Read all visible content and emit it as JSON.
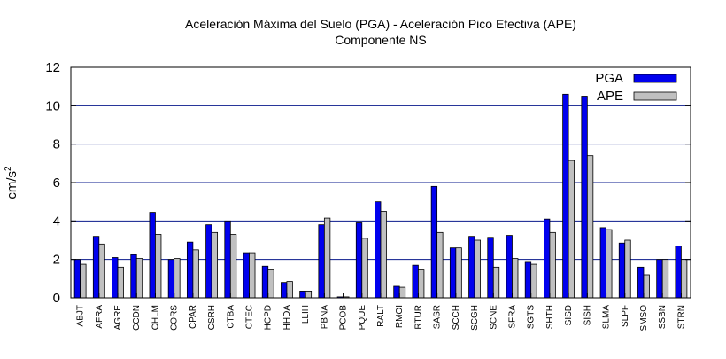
{
  "chart_data": {
    "type": "bar",
    "title_line1": "Aceleración Máxima del Suelo (PGA) -   Aceleración Pico Efectiva (APE)",
    "title_line2": "Componente NS",
    "ylabel": "cm/s",
    "ylabel_sup": "2",
    "xlabel": "",
    "ylim": [
      0,
      12
    ],
    "yticks": [
      0,
      2,
      4,
      6,
      8,
      10,
      12
    ],
    "grid": "horizontal",
    "legend_position": "top-right",
    "categories": [
      "ABJT",
      "AFRA",
      "AGRE",
      "CCDN",
      "CHLM",
      "CORS",
      "CPAR",
      "CSRH",
      "CTBA",
      "CTEC",
      "HCPD",
      "HHDA",
      "LLIH",
      "PBNA",
      "PCOB",
      "PQUE",
      "RALT",
      "RMOI",
      "RTUR",
      "SASR",
      "SCCH",
      "SCGH",
      "SCNE",
      "SFRA",
      "SGTS",
      "SHTH",
      "SISD",
      "SISH",
      "SLMA",
      "SLPF",
      "SMSO",
      "SSBN",
      "STRN"
    ],
    "series": [
      {
        "name": "PGA",
        "color": "#0000ee",
        "values": [
          2.0,
          3.2,
          2.1,
          2.25,
          4.45,
          2.0,
          2.9,
          3.8,
          4.0,
          2.35,
          1.65,
          0.8,
          0.35,
          3.8,
          0.05,
          3.9,
          5.0,
          0.6,
          1.7,
          5.8,
          2.6,
          3.2,
          3.15,
          3.25,
          1.85,
          4.1,
          10.6,
          10.5,
          3.65,
          2.85,
          1.6,
          2.0,
          2.7
        ]
      },
      {
        "name": "APE",
        "color": "#c0c0c0",
        "values": [
          1.75,
          2.8,
          1.6,
          2.05,
          3.3,
          2.05,
          2.5,
          3.4,
          3.3,
          2.35,
          1.45,
          0.85,
          0.35,
          4.15,
          0.05,
          3.1,
          4.5,
          0.55,
          1.45,
          3.4,
          2.6,
          3.0,
          1.6,
          2.05,
          1.75,
          3.4,
          7.15,
          7.4,
          3.55,
          3.0,
          1.2,
          2.0,
          2.0
        ]
      }
    ]
  }
}
